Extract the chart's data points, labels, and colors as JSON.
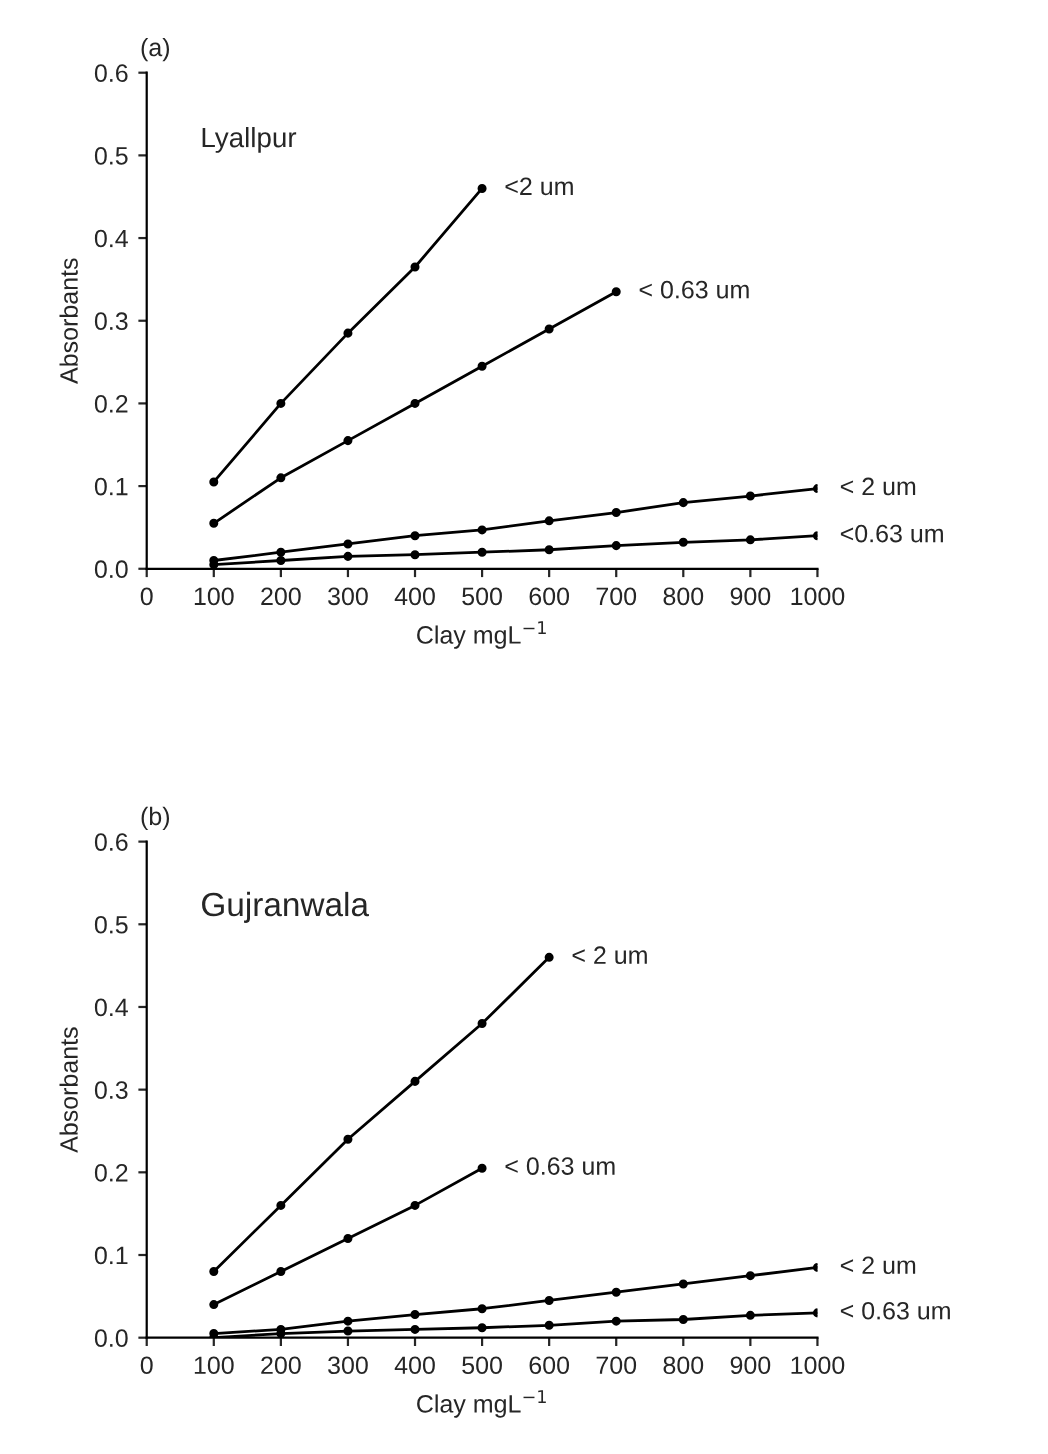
{
  "chart_data": [
    {
      "type": "line",
      "title": "(a)",
      "xlabel": "Clay mgL$^{−1}$",
      "ylabel": "Absorbants",
      "x": [
        100,
        200,
        300,
        400,
        500,
        600,
        700,
        800,
        900,
        1000
      ],
      "series": [
        {
          "color": "#000000",
          "x": [
            100,
            200,
            300,
            400,
            500
          ],
          "values": [
            0.105,
            0.2,
            0.285,
            0.365,
            0.46
          ]
        },
        {
          "color": "#000000",
          "x": [
            100,
            200,
            300,
            400,
            500,
            600,
            700
          ],
          "values": [
            0.055,
            0.11,
            0.155,
            0.2,
            0.245,
            0.29,
            0.335
          ]
        },
        {
          "color": "#000000",
          "values": [
            0.01,
            0.02,
            0.03,
            0.04,
            0.047,
            0.058,
            0.068,
            0.08,
            0.088,
            0.097
          ]
        },
        {
          "color": "#000000",
          "values": [
            0.005,
            0.01,
            0.015,
            0.017,
            0.02,
            0.023,
            0.028,
            0.032,
            0.035,
            0.04
          ]
        }
      ],
      "annotations": [
        "Lyallpur",
        {
          "text": "<2 um",
          "x": 500,
          "y": 0.46
        },
        {
          "text": "< 0.63 um",
          "x": 700,
          "y": 0.335
        },
        {
          "text": "< 2 um",
          "x": 1000,
          "y": 0.097
        },
        {
          "text": "<0.63 um",
          "x": 1000,
          "y": 0.04
        }
      ],
      "xlim": [
        0,
        1000
      ],
      "xticks": [
        0,
        100,
        200,
        300,
        400,
        500,
        600,
        700,
        800,
        900,
        1000
      ],
      "ylim": [
        0,
        0.6
      ],
      "yticks": [
        {
          "value": 0,
          "label": "0.0"
        },
        0.1,
        0.2,
        0.3,
        0.4,
        0.5,
        0.6
      ],
      "marker": "circle",
      "line_style": "solid",
      "grid": false,
      "legend": false
    },
    {
      "type": "line",
      "title": "(b)",
      "xlabel": "Clay mgL$^{−1}$",
      "ylabel": "Absorbants",
      "x": [
        100,
        200,
        300,
        400,
        500,
        600,
        700,
        800,
        900,
        1000
      ],
      "series": [
        {
          "color": "#000000",
          "x": [
            100,
            200,
            300,
            400,
            500,
            600
          ],
          "values": [
            0.08,
            0.16,
            0.24,
            0.31,
            0.38,
            0.46
          ]
        },
        {
          "color": "#000000",
          "x": [
            100,
            200,
            300,
            400,
            500
          ],
          "values": [
            0.04,
            0.08,
            0.12,
            0.16,
            0.205
          ]
        },
        {
          "color": "#000000",
          "values": [
            0.005,
            0.01,
            0.02,
            0.028,
            0.035,
            0.045,
            0.055,
            0.065,
            0.075,
            0.085
          ]
        },
        {
          "color": "#000000",
          "values": [
            0.0,
            0.005,
            0.008,
            0.01,
            0.012,
            0.015,
            0.02,
            0.022,
            0.027,
            0.03
          ]
        }
      ],
      "annotations": [
        "Gujranwala",
        {
          "text": "< 2 um",
          "x": 600,
          "y": 0.46
        },
        {
          "text": "< 0.63 um",
          "x": 500,
          "y": 0.205
        },
        {
          "text": "< 2 um",
          "x": 1000,
          "y": 0.085
        },
        {
          "text": "< 0.63 um",
          "x": 1000,
          "y": 0.03
        }
      ],
      "xlim": [
        0,
        1000
      ],
      "xticks": [
        0,
        100,
        200,
        300,
        400,
        500,
        600,
        700,
        800,
        900,
        1000
      ],
      "ylim": [
        0,
        0.6
      ],
      "yticks": [
        {
          "value": 0,
          "label": "0.0"
        },
        0.1,
        0.2,
        0.3,
        0.4,
        0.5,
        0.6
      ],
      "marker": "circle",
      "line_style": "solid",
      "grid": false,
      "legend": false
    }
  ]
}
